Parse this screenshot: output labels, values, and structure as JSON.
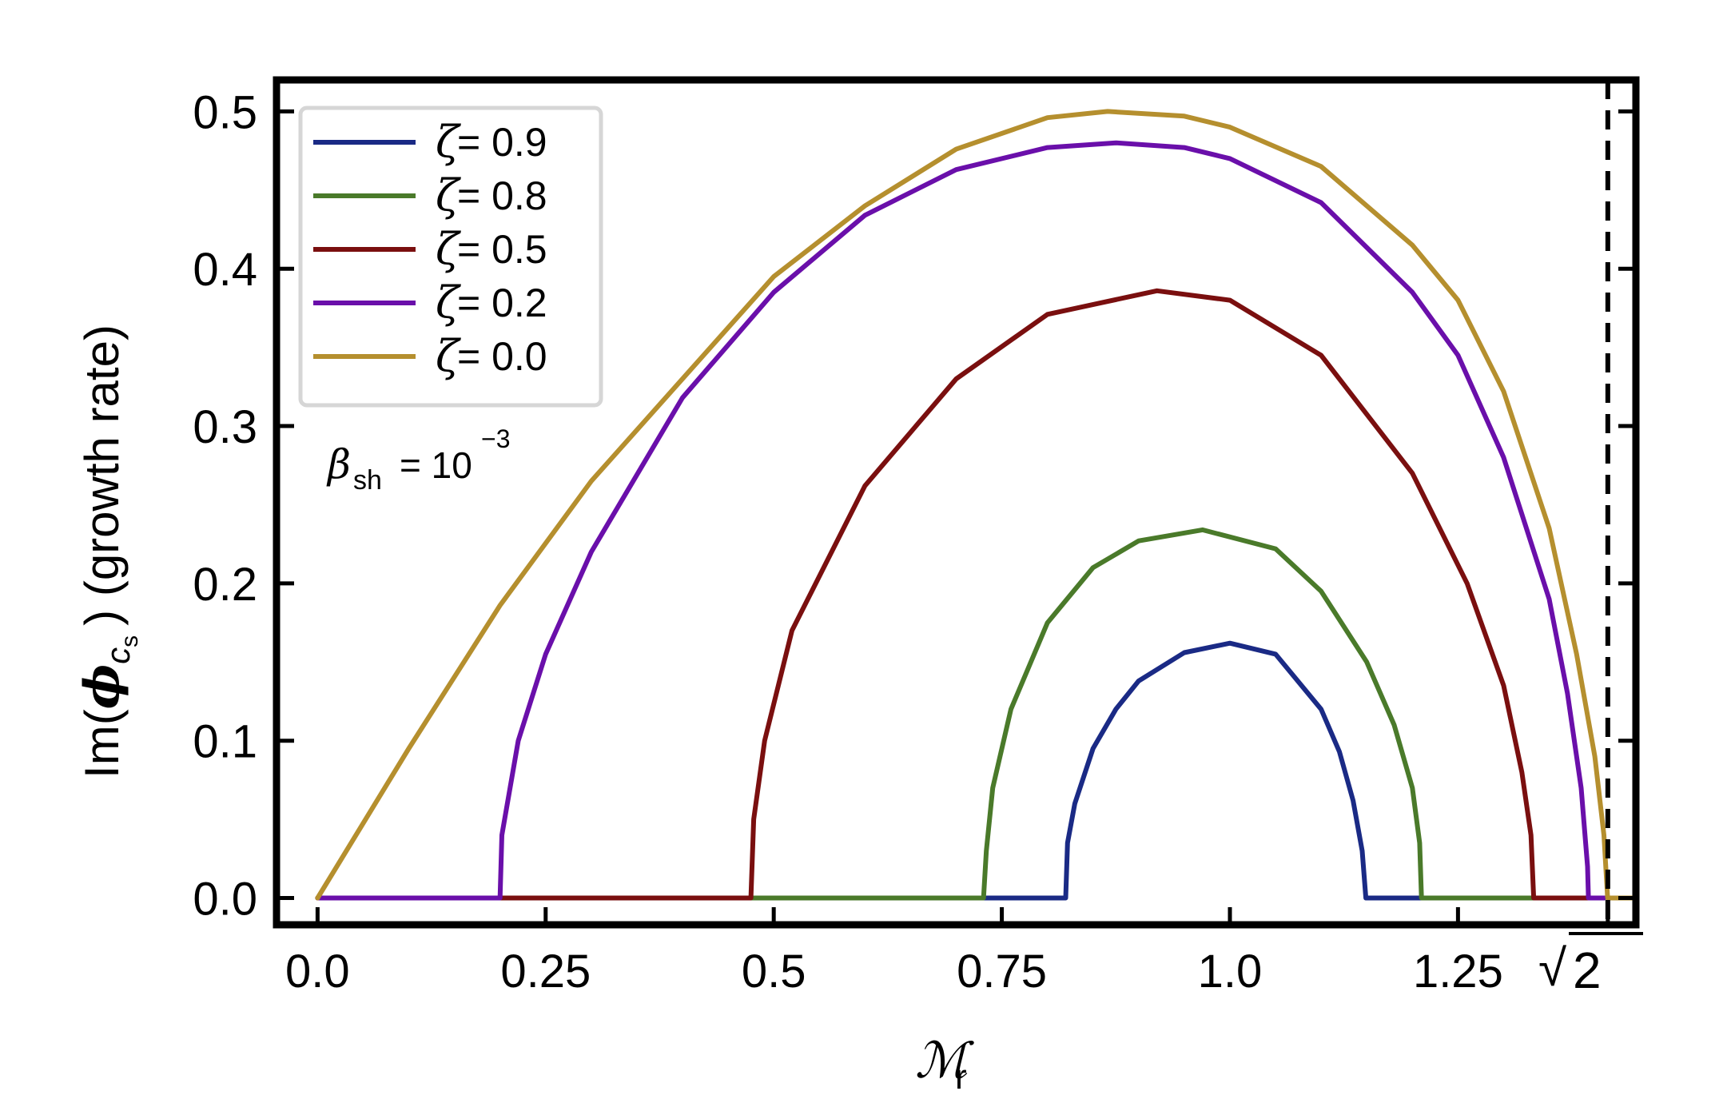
{
  "chart_data": {
    "type": "line",
    "xlabel": "ℳ",
    "xlabel_subscript": "r",
    "ylabel_prefix": "Im(",
    "ylabel_symbol": "ϕ",
    "ylabel_sub": "c",
    "ylabel_subsub": "s",
    "ylabel_suffix": ") (growth rate)",
    "xlim": [
      -0.045,
      1.445
    ],
    "ylim": [
      -0.017,
      0.52
    ],
    "x_ticks": [
      {
        "value": 0.0,
        "label": "0.0"
      },
      {
        "value": 0.25,
        "label": "0.25"
      },
      {
        "value": 0.5,
        "label": "0.5"
      },
      {
        "value": 0.75,
        "label": "0.75"
      },
      {
        "value": 1.0,
        "label": "1.0"
      },
      {
        "value": 1.25,
        "label": "1.25"
      }
    ],
    "x_special_tick": {
      "value": 1.41421,
      "label_radical": "√",
      "label_number": "2"
    },
    "y_ticks": [
      {
        "value": 0.0,
        "label": "0.0"
      },
      {
        "value": 0.1,
        "label": "0.1"
      },
      {
        "value": 0.2,
        "label": "0.2"
      },
      {
        "value": 0.3,
        "label": "0.3"
      },
      {
        "value": 0.4,
        "label": "0.4"
      },
      {
        "value": 0.5,
        "label": "0.5"
      }
    ],
    "vertical_line": {
      "x": 1.41421,
      "style": "dashed"
    },
    "grid": false,
    "legend_position": "top-left",
    "annotation": {
      "symbol": "β",
      "symbol_sub": "sh",
      "equals": "= 10",
      "exponent": "−3"
    },
    "series": [
      {
        "name": "ζ = 0.9",
        "zeta_label": "ζ",
        "value_label": "=  0.9",
        "color": "#1a2a85",
        "points": [
          [
            0.0,
            0.0
          ],
          [
            0.82,
            0.0
          ],
          [
            0.822,
            0.035
          ],
          [
            0.83,
            0.06
          ],
          [
            0.85,
            0.095
          ],
          [
            0.875,
            0.12
          ],
          [
            0.9,
            0.138
          ],
          [
            0.95,
            0.156
          ],
          [
            1.0,
            0.162
          ],
          [
            1.05,
            0.155
          ],
          [
            1.1,
            0.12
          ],
          [
            1.12,
            0.093
          ],
          [
            1.135,
            0.062
          ],
          [
            1.145,
            0.03
          ],
          [
            1.149,
            0.0
          ],
          [
            1.41,
            0.0
          ]
        ]
      },
      {
        "name": "ζ = 0.8",
        "zeta_label": "ζ",
        "value_label": "=  0.8",
        "color": "#4a7a2a",
        "points": [
          [
            0.0,
            0.0
          ],
          [
            0.73,
            0.0
          ],
          [
            0.733,
            0.03
          ],
          [
            0.74,
            0.07
          ],
          [
            0.76,
            0.12
          ],
          [
            0.8,
            0.175
          ],
          [
            0.85,
            0.21
          ],
          [
            0.9,
            0.227
          ],
          [
            0.97,
            0.234
          ],
          [
            1.05,
            0.222
          ],
          [
            1.1,
            0.195
          ],
          [
            1.15,
            0.15
          ],
          [
            1.18,
            0.11
          ],
          [
            1.2,
            0.07
          ],
          [
            1.208,
            0.035
          ],
          [
            1.21,
            0.0
          ],
          [
            1.41,
            0.0
          ]
        ]
      },
      {
        "name": "ζ = 0.5",
        "zeta_label": "ζ",
        "value_label": "=  0.5",
        "color": "#7a0f0f",
        "points": [
          [
            0.0,
            0.0
          ],
          [
            0.475,
            0.0
          ],
          [
            0.478,
            0.05
          ],
          [
            0.49,
            0.1
          ],
          [
            0.52,
            0.17
          ],
          [
            0.6,
            0.262
          ],
          [
            0.7,
            0.33
          ],
          [
            0.8,
            0.371
          ],
          [
            0.92,
            0.386
          ],
          [
            1.0,
            0.38
          ],
          [
            1.1,
            0.345
          ],
          [
            1.2,
            0.27
          ],
          [
            1.26,
            0.2
          ],
          [
            1.3,
            0.135
          ],
          [
            1.32,
            0.08
          ],
          [
            1.33,
            0.04
          ],
          [
            1.333,
            0.0
          ],
          [
            1.41,
            0.0
          ]
        ]
      },
      {
        "name": "ζ = 0.2",
        "zeta_label": "ζ",
        "value_label": "=  0.2",
        "color": "#6a0faa",
        "points": [
          [
            0.0,
            0.0
          ],
          [
            0.2,
            0.0
          ],
          [
            0.202,
            0.04
          ],
          [
            0.22,
            0.1
          ],
          [
            0.25,
            0.155
          ],
          [
            0.3,
            0.22
          ],
          [
            0.4,
            0.318
          ],
          [
            0.5,
            0.385
          ],
          [
            0.6,
            0.434
          ],
          [
            0.7,
            0.463
          ],
          [
            0.8,
            0.477
          ],
          [
            0.875,
            0.48
          ],
          [
            0.95,
            0.477
          ],
          [
            1.0,
            0.47
          ],
          [
            1.1,
            0.442
          ],
          [
            1.2,
            0.385
          ],
          [
            1.25,
            0.345
          ],
          [
            1.3,
            0.28
          ],
          [
            1.35,
            0.19
          ],
          [
            1.37,
            0.13
          ],
          [
            1.385,
            0.07
          ],
          [
            1.392,
            0.02
          ],
          [
            1.393,
            0.0
          ],
          [
            1.41,
            0.0
          ]
        ]
      },
      {
        "name": "ζ = 0.0",
        "zeta_label": "ζ",
        "value_label": "=  0.0",
        "color": "#b58f2e",
        "points": [
          [
            0.0,
            0.0
          ],
          [
            0.1,
            0.095
          ],
          [
            0.2,
            0.186
          ],
          [
            0.3,
            0.265
          ],
          [
            0.4,
            0.33
          ],
          [
            0.5,
            0.395
          ],
          [
            0.6,
            0.44
          ],
          [
            0.7,
            0.476
          ],
          [
            0.8,
            0.496
          ],
          [
            0.866,
            0.5
          ],
          [
            0.95,
            0.497
          ],
          [
            1.0,
            0.49
          ],
          [
            1.1,
            0.465
          ],
          [
            1.2,
            0.415
          ],
          [
            1.25,
            0.38
          ],
          [
            1.3,
            0.322
          ],
          [
            1.35,
            0.235
          ],
          [
            1.38,
            0.155
          ],
          [
            1.4,
            0.09
          ],
          [
            1.41,
            0.04
          ],
          [
            1.414,
            0.0
          ],
          [
            1.445,
            0.0
          ]
        ]
      }
    ]
  }
}
